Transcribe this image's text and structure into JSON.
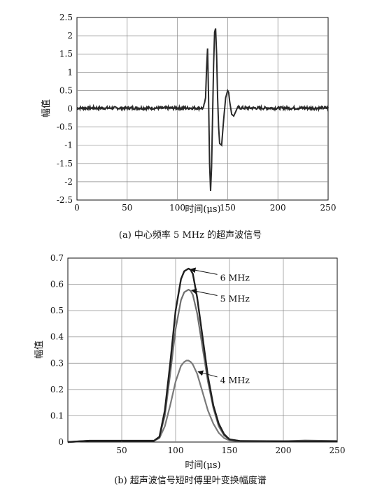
{
  "chart_data": [
    {
      "type": "line",
      "caption": "(a) 中心频率 5 MHz 的超声波信号",
      "xlabel": "时间(μs)",
      "ylabel": "幅值",
      "xlim": [
        0,
        250
      ],
      "ylim": [
        -2.5,
        2.5
      ],
      "xticks": [
        "0",
        "50",
        "100",
        "150",
        "200",
        "250"
      ],
      "yticks": [
        "2.5",
        "2",
        "1.5",
        "1",
        "0.5",
        "0",
        "-0.5",
        "-1",
        "-1.5",
        "-2",
        "-2.5"
      ],
      "grid": true,
      "line_color": "#2a2a2a",
      "series": [
        {
          "x": [
            0,
            20,
            40,
            60,
            80,
            100,
            120,
            126,
            128,
            129,
            130,
            131,
            132,
            133,
            134,
            135,
            136,
            137,
            138,
            139,
            140,
            141,
            142,
            144,
            146,
            148,
            150,
            151,
            152,
            154,
            156,
            158,
            160,
            162,
            164,
            166,
            168,
            170,
            180,
            200,
            220,
            250
          ],
          "y": [
            0.02,
            0.02,
            0.02,
            0.02,
            0.02,
            0.02,
            0.02,
            0.02,
            0.3,
            1.1,
            1.65,
            0.3,
            -1.5,
            -2.25,
            -1.6,
            -0.2,
            1.2,
            2.1,
            2.2,
            1.5,
            0.3,
            -0.5,
            -0.95,
            -1.0,
            -0.3,
            0.3,
            0.5,
            0.45,
            0.2,
            -0.15,
            -0.2,
            -0.08,
            0.05,
            0.03,
            0.02,
            0.02,
            0.02,
            0.02,
            0.02,
            0.02,
            0.02,
            0.02
          ]
        }
      ]
    },
    {
      "type": "line",
      "caption": "(b) 超声波信号短时傅里叶变换幅度谱",
      "xlabel": "时间(μs)",
      "ylabel": "幅值",
      "xlim": [
        0,
        250
      ],
      "ylim": [
        0,
        0.7
      ],
      "xticks": [
        "50",
        "100",
        "150",
        "200",
        "250"
      ],
      "yticks": [
        "0.7",
        "0.6",
        "0.5",
        "0.4",
        "0.3",
        "0.2",
        "0.1",
        "0"
      ],
      "grid": true,
      "series": [
        {
          "name": "6 MHz",
          "color": "#1f1f1f",
          "x": [
            0,
            20,
            40,
            60,
            80,
            85,
            90,
            95,
            100,
            105,
            108,
            110,
            112,
            114,
            116,
            120,
            125,
            130,
            135,
            140,
            145,
            150,
            160,
            200,
            250
          ],
          "y": [
            0.0,
            0.005,
            0.005,
            0.005,
            0.005,
            0.02,
            0.12,
            0.3,
            0.5,
            0.62,
            0.65,
            0.655,
            0.66,
            0.655,
            0.64,
            0.55,
            0.4,
            0.25,
            0.14,
            0.07,
            0.03,
            0.01,
            0.004,
            0.003,
            0.003
          ]
        },
        {
          "name": "5 MHz",
          "color": "#6e6e6e",
          "x": [
            0,
            20,
            40,
            60,
            80,
            85,
            90,
            95,
            100,
            105,
            108,
            110,
            112,
            114,
            116,
            120,
            125,
            130,
            135,
            140,
            145,
            150,
            160,
            200,
            220,
            250
          ],
          "y": [
            0.0,
            0.005,
            0.005,
            0.005,
            0.005,
            0.02,
            0.1,
            0.26,
            0.43,
            0.54,
            0.57,
            0.575,
            0.58,
            0.575,
            0.56,
            0.49,
            0.36,
            0.23,
            0.13,
            0.06,
            0.025,
            0.01,
            0.004,
            0.003,
            0.006,
            0.004
          ]
        },
        {
          "name": "4 MHz",
          "color": "#7a7a7a",
          "x": [
            0,
            20,
            40,
            60,
            80,
            85,
            90,
            95,
            100,
            105,
            108,
            110,
            112,
            114,
            116,
            120,
            125,
            130,
            135,
            140,
            145,
            150,
            160,
            200,
            250
          ],
          "y": [
            0.0,
            0.005,
            0.005,
            0.005,
            0.005,
            0.015,
            0.06,
            0.14,
            0.23,
            0.29,
            0.305,
            0.31,
            0.31,
            0.305,
            0.295,
            0.26,
            0.19,
            0.12,
            0.07,
            0.035,
            0.015,
            0.006,
            0.003,
            0.003,
            0.003
          ]
        }
      ],
      "annotations": [
        {
          "text": "6 MHz",
          "x": 112,
          "y": 0.66,
          "tx": 140,
          "ty": 0.635
        },
        {
          "text": "5 MHz",
          "x": 113,
          "y": 0.58,
          "tx": 140,
          "ty": 0.555
        },
        {
          "text": "4 MHz",
          "x": 119,
          "y": 0.27,
          "tx": 140,
          "ty": 0.245
        }
      ]
    }
  ]
}
